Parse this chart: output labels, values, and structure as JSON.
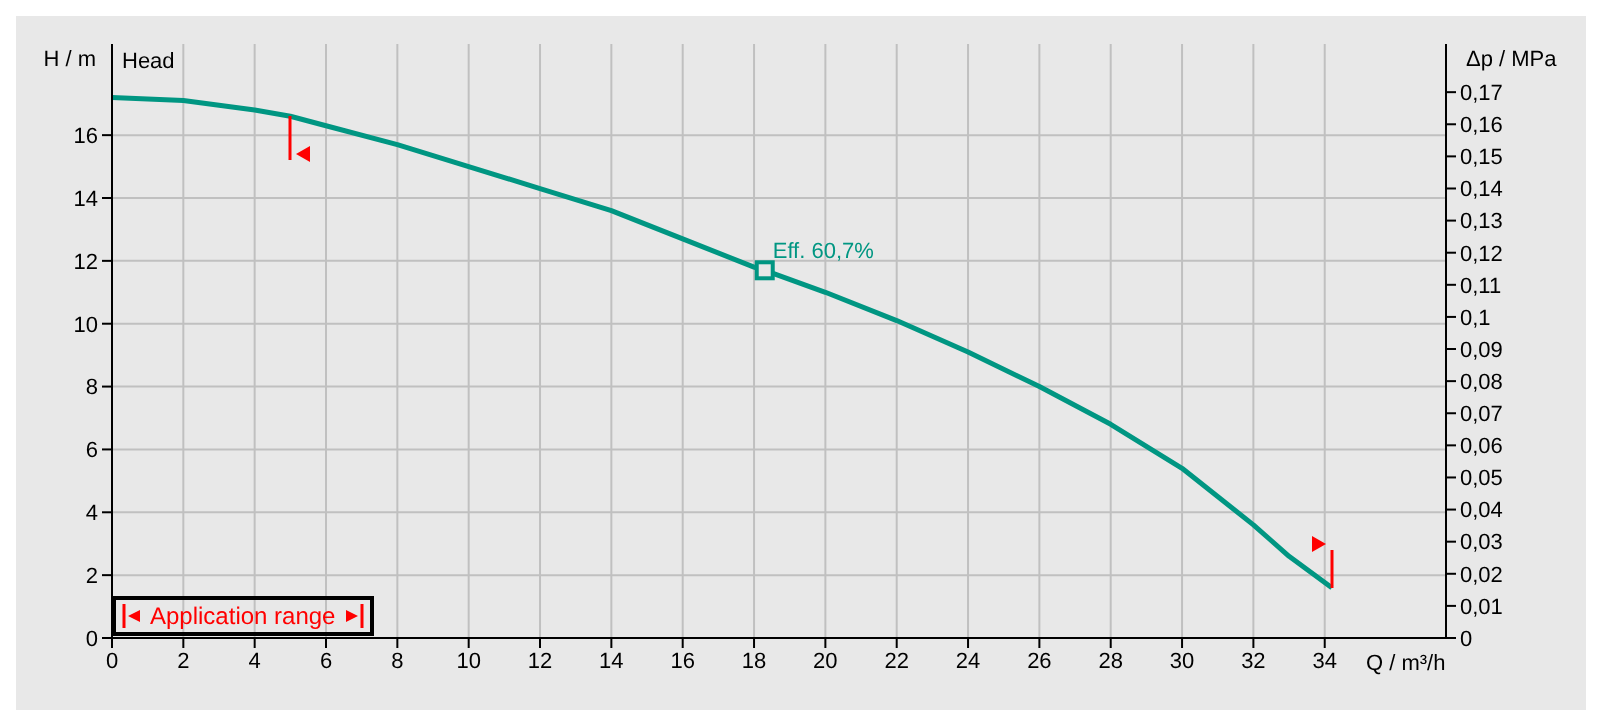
{
  "chart_data": {
    "type": "line",
    "xlabel": "Q / m³/h",
    "ylabel": "H / m",
    "y2label": "Δp / MPa",
    "annotations": [
      "Head",
      {
        "text": "Eff.  60,7%",
        "x": 18.3,
        "y": 11.7
      },
      "Application range"
    ],
    "xlim": [
      0,
      37.4
    ],
    "xticks": [
      0,
      2,
      4,
      6,
      8,
      10,
      12,
      14,
      16,
      18,
      20,
      22,
      24,
      26,
      28,
      30,
      32,
      34
    ],
    "ylim": [
      0,
      18.9
    ],
    "yticks": [
      0,
      2,
      4,
      6,
      8,
      10,
      12,
      14,
      16
    ],
    "y2lim": [
      0,
      0.185
    ],
    "y2ticks": [
      0,
      {
        "value": 0.01,
        "label": "0,01"
      },
      {
        "value": 0.02,
        "label": "0,02"
      },
      {
        "value": 0.03,
        "label": "0,03"
      },
      {
        "value": 0.04,
        "label": "0,04"
      },
      {
        "value": 0.05,
        "label": "0,05"
      },
      {
        "value": 0.06,
        "label": "0,06"
      },
      {
        "value": 0.07,
        "label": "0,07"
      },
      {
        "value": 0.08,
        "label": "0,08"
      },
      {
        "value": 0.09,
        "label": "0,09"
      },
      {
        "value": 0.1,
        "label": "0,1"
      },
      {
        "value": 0.11,
        "label": "0,11"
      },
      {
        "value": 0.12,
        "label": "0,12"
      },
      {
        "value": 0.13,
        "label": "0,13"
      },
      {
        "value": 0.14,
        "label": "0,14"
      },
      {
        "value": 0.15,
        "label": "0,15"
      },
      {
        "value": 0.16,
        "label": "0,16"
      },
      {
        "value": 0.17,
        "label": "0,17"
      }
    ],
    "grid": true,
    "marker": "none",
    "line_style": "solid",
    "series": [
      {
        "type": "line",
        "color": "#009682",
        "x": [
          0,
          2,
          4,
          5,
          6,
          8,
          10,
          12,
          14,
          16,
          18,
          18.3,
          20,
          22,
          24,
          26,
          28,
          30,
          32,
          33,
          34.2
        ],
        "values": [
          17.2,
          17.1,
          16.8,
          16.6,
          16.3,
          15.7,
          15.0,
          14.3,
          13.6,
          12.7,
          11.8,
          11.7,
          11.0,
          10.1,
          9.1,
          8.0,
          6.8,
          5.4,
          3.6,
          2.6,
          1.6
        ]
      },
      {
        "type": "scatter",
        "marker": "square",
        "color": "#009682",
        "x": [
          18.3
        ],
        "values": [
          11.7
        ]
      }
    ]
  }
}
